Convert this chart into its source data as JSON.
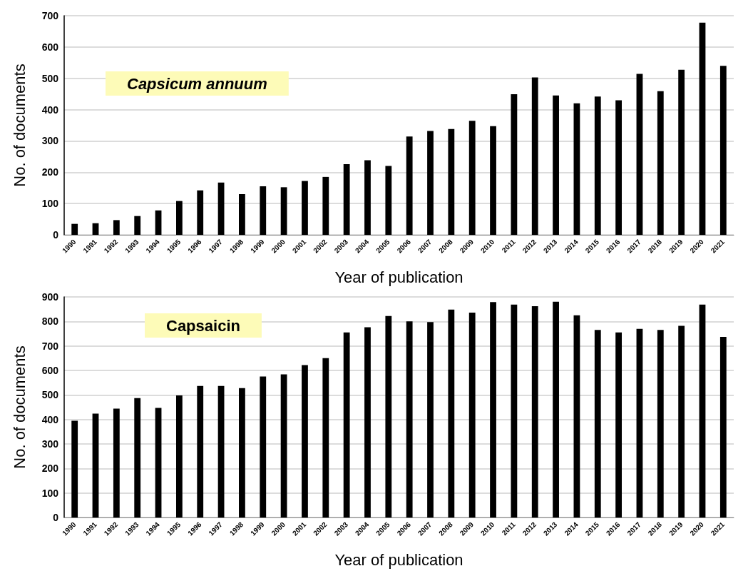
{
  "chart_data": [
    {
      "type": "bar",
      "title": "Capsicum annuum",
      "xlabel": "Year of publication",
      "ylabel": "No. of documents",
      "categories": [
        "1990",
        "1991",
        "1992",
        "1993",
        "1994",
        "1995",
        "1996",
        "1997",
        "1998",
        "1999",
        "2000",
        "2001",
        "2002",
        "2003",
        "2004",
        "2005",
        "2006",
        "2007",
        "2008",
        "2009",
        "2010",
        "2011",
        "2012",
        "2013",
        "2014",
        "2015",
        "2016",
        "2017",
        "2018",
        "2019",
        "2020",
        "2021"
      ],
      "values": [
        35,
        37,
        47,
        60,
        78,
        108,
        142,
        167,
        130,
        155,
        152,
        172,
        185,
        226,
        238,
        220,
        314,
        332,
        338,
        364,
        347,
        449,
        503,
        445,
        420,
        442,
        430,
        514,
        459,
        527,
        678,
        540
      ],
      "color": "#000000",
      "ylim": [
        0,
        700
      ],
      "yticks": [
        0,
        100,
        200,
        300,
        400,
        500,
        600,
        700
      ],
      "grid": "y"
    },
    {
      "type": "bar",
      "title": "Capsaicin",
      "xlabel": "Year of publication",
      "ylabel": "No. of documents",
      "categories": [
        "1990",
        "1991",
        "1992",
        "1993",
        "1994",
        "1995",
        "1996",
        "1997",
        "1998",
        "1999",
        "2000",
        "2001",
        "2002",
        "2003",
        "2004",
        "2005",
        "2006",
        "2007",
        "2008",
        "2009",
        "2010",
        "2011",
        "2012",
        "2013",
        "2014",
        "2015",
        "2016",
        "2017",
        "2018",
        "2019",
        "2020",
        "2021"
      ],
      "values": [
        395,
        424,
        444,
        487,
        447,
        498,
        537,
        537,
        528,
        575,
        584,
        622,
        650,
        755,
        776,
        822,
        800,
        797,
        848,
        836,
        879,
        869,
        862,
        880,
        825,
        765,
        755,
        770,
        765,
        782,
        869,
        737
      ],
      "color": "#000000",
      "ylim": [
        0,
        900
      ],
      "yticks": [
        0,
        100,
        200,
        300,
        400,
        500,
        600,
        700,
        800,
        900
      ],
      "grid": "y"
    }
  ]
}
